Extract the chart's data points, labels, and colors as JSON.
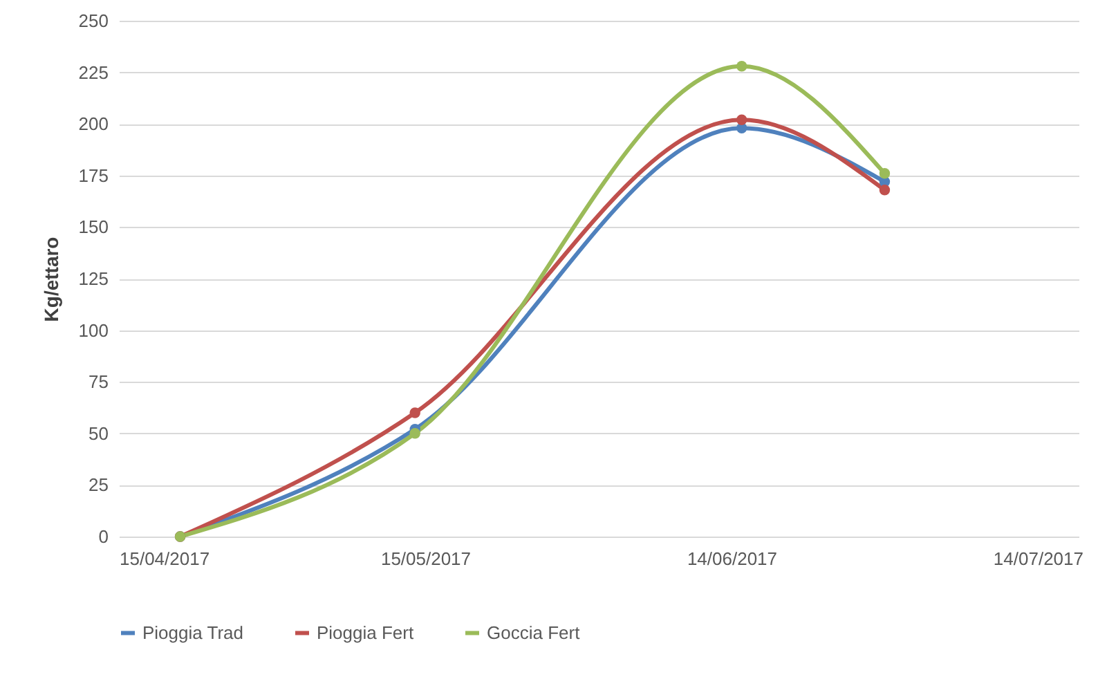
{
  "chart_data": {
    "type": "line",
    "ylabel": "Kg/ettaro",
    "x": [
      "2017-04-21",
      "2017-05-14",
      "2017-06-15",
      "2017-06-29"
    ],
    "series": [
      {
        "name": "Pioggia Trad",
        "color": "#4f81bd",
        "values": [
          0,
          52,
          198,
          172
        ]
      },
      {
        "name": "Pioggia Fert",
        "color": "#c0504d",
        "values": [
          0,
          60,
          202,
          168
        ]
      },
      {
        "name": "Goccia Fert",
        "color": "#9bbb59",
        "values": [
          0,
          50,
          228,
          176
        ]
      }
    ],
    "xlim": [
      "2017-04-15",
      "2017-07-18"
    ],
    "xticks": [
      {
        "value": "2017-04-15",
        "label": "15/04/2017"
      },
      {
        "value": "2017-05-15",
        "label": "15/05/2017"
      },
      {
        "value": "2017-06-14",
        "label": "14/06/2017"
      },
      {
        "value": "2017-07-14",
        "label": "14/07/2017"
      }
    ],
    "ylim": [
      0,
      250
    ],
    "yticks": [
      0,
      25,
      50,
      75,
      100,
      125,
      150,
      175,
      200,
      225,
      250
    ],
    "grid": "y",
    "legend": "bottom",
    "marker": "circle",
    "line_style": "solid"
  }
}
